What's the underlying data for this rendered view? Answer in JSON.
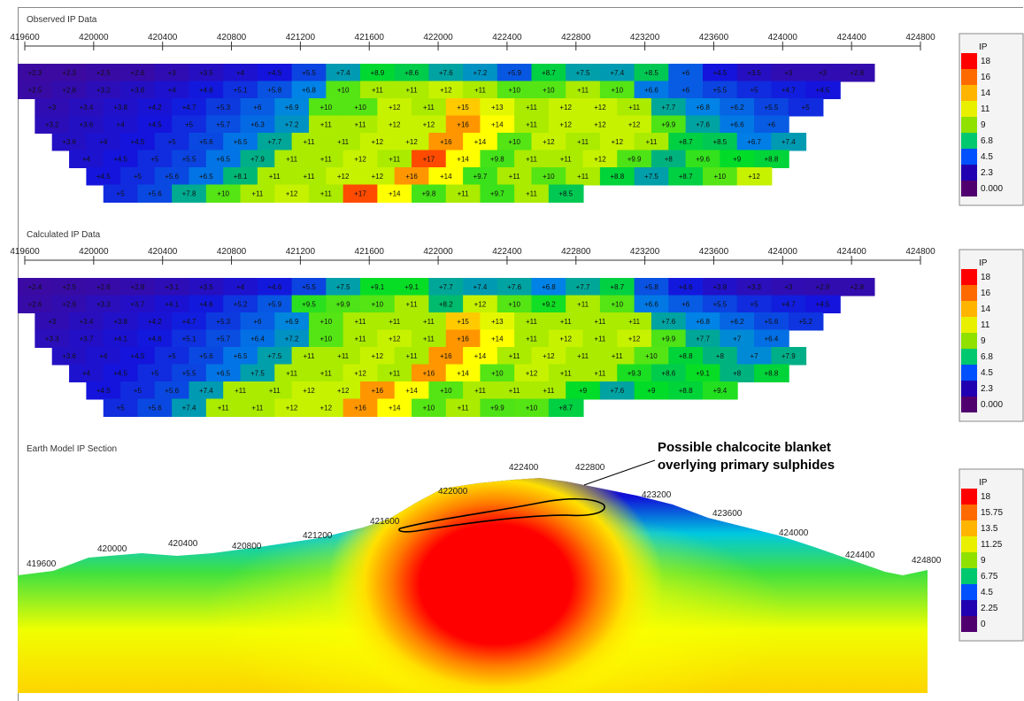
{
  "chart_data": [
    {
      "type": "heatmap",
      "title": "Observed IP Data",
      "x_ticks": [
        "419600",
        "420000",
        "420400",
        "420800",
        "421200",
        "421600",
        "422000",
        "422400",
        "422800",
        "423200",
        "423600",
        "424000",
        "424400",
        "424800"
      ],
      "legend": {
        "title": "IP",
        "labels": [
          "18",
          "16",
          "14",
          "11",
          "9",
          "6.8",
          "4.5",
          "2.3",
          "0.000"
        ]
      },
      "rows": [
        {
          "start": 0,
          "values": [
            2.3,
            2.3,
            2.5,
            2.6,
            3.0,
            3.5,
            4.0,
            4.5,
            5.5,
            7.4,
            8.9,
            8.6,
            7.6,
            7.2,
            5.9,
            8.7,
            7.5,
            7.4,
            8.5,
            6.0,
            4.5,
            3.5,
            3.0,
            3.0,
            2.8
          ]
        },
        {
          "start": 0,
          "values": [
            2.5,
            2.8,
            3.2,
            3.6,
            4.0,
            4.6,
            5.1,
            5.8,
            6.8,
            10,
            11,
            11,
            12,
            11,
            10,
            10,
            11,
            10,
            6.6,
            6.0,
            5.5,
            5.0,
            4.7,
            4.5
          ]
        },
        {
          "start": 1,
          "values": [
            3.0,
            3.4,
            3.8,
            4.2,
            4.7,
            5.3,
            6.0,
            6.9,
            10,
            10,
            12,
            11,
            15,
            13,
            11,
            12,
            12,
            11,
            7.7,
            6.8,
            6.2,
            5.5,
            5.0
          ]
        },
        {
          "start": 1,
          "values": [
            3.2,
            3.6,
            4.0,
            4.5,
            5.0,
            5.7,
            6.3,
            7.2,
            11,
            11,
            12,
            12,
            16,
            14,
            11,
            12,
            12,
            12,
            9.9,
            7.6,
            6.6,
            6.0
          ]
        },
        {
          "start": 2,
          "values": [
            3.6,
            4.0,
            4.5,
            5.0,
            5.6,
            6.5,
            7.7,
            11,
            11,
            12,
            12,
            16,
            14,
            10,
            12,
            11,
            12,
            11,
            8.7,
            8.5,
            6.7,
            7.4
          ]
        },
        {
          "start": 3,
          "values": [
            4.0,
            4.5,
            5.0,
            5.5,
            6.5,
            7.9,
            11,
            11,
            12,
            11,
            17,
            14,
            9.8,
            11,
            11,
            12,
            9.9,
            8.0,
            9.6,
            9.0,
            8.8
          ]
        },
        {
          "start": 4,
          "values": [
            4.5,
            5.0,
            5.6,
            6.5,
            8.1,
            11,
            11,
            12,
            12,
            16,
            14,
            9.7,
            11,
            10,
            11,
            8.8,
            7.5,
            8.7,
            10,
            12
          ]
        },
        {
          "start": 5,
          "values": [
            5.0,
            5.6,
            7.8,
            10,
            11,
            12,
            11,
            17,
            14,
            9.8,
            11,
            9.7,
            11,
            8.5
          ]
        }
      ]
    },
    {
      "type": "heatmap",
      "title": "Calculated IP Data",
      "x_ticks": [
        "419600",
        "420000",
        "420400",
        "420800",
        "421200",
        "421600",
        "422000",
        "422400",
        "422800",
        "423200",
        "423600",
        "424000",
        "424400",
        "424800"
      ],
      "legend": {
        "title": "IP",
        "labels": [
          "18",
          "16",
          "14",
          "11",
          "9",
          "6.8",
          "4.5",
          "2.3",
          "0.000"
        ]
      },
      "rows": [
        {
          "start": 0,
          "values": [
            2.4,
            2.5,
            2.6,
            2.8,
            3.1,
            3.5,
            4.0,
            4.6,
            5.5,
            7.5,
            9.1,
            9.1,
            7.7,
            7.4,
            7.6,
            6.8,
            7.7,
            8.7,
            5.8,
            4.6,
            3.8,
            3.3,
            3.0,
            2.9,
            2.8
          ]
        },
        {
          "start": 0,
          "values": [
            2.6,
            2.9,
            3.3,
            3.7,
            4.1,
            4.6,
            5.2,
            5.9,
            9.5,
            9.9,
            10,
            11,
            8.2,
            12,
            10,
            9.2,
            11,
            10,
            6.6,
            6.0,
            5.5,
            5.0,
            4.7,
            4.5
          ]
        },
        {
          "start": 1,
          "values": [
            3.0,
            3.4,
            3.8,
            4.2,
            4.7,
            5.3,
            6.0,
            6.9,
            10,
            11,
            11,
            11,
            15,
            13,
            11,
            11,
            11,
            11,
            7.6,
            6.8,
            6.2,
            5.6,
            5.2
          ]
        },
        {
          "start": 1,
          "values": [
            3.3,
            3.7,
            4.1,
            4.6,
            5.1,
            5.7,
            6.4,
            7.2,
            10,
            11,
            12,
            11,
            16,
            14,
            11,
            12,
            11,
            12,
            9.9,
            7.7,
            7.0,
            6.4
          ]
        },
        {
          "start": 2,
          "values": [
            3.6,
            4.0,
            4.5,
            5.0,
            5.6,
            6.5,
            7.5,
            11,
            11,
            12,
            11,
            16,
            14,
            11,
            12,
            11,
            11,
            10,
            8.8,
            8.0,
            7.0,
            7.9
          ]
        },
        {
          "start": 3,
          "values": [
            4.0,
            4.5,
            5.0,
            5.5,
            6.5,
            7.5,
            11,
            11,
            12,
            11,
            16,
            14,
            10,
            12,
            11,
            11,
            9.3,
            8.6,
            9.1,
            8.0,
            8.8
          ]
        },
        {
          "start": 4,
          "values": [
            4.5,
            5.0,
            5.6,
            7.4,
            11,
            11,
            12,
            12,
            16,
            14,
            10,
            11,
            11,
            11,
            9.0,
            7.6,
            9.0,
            8.8,
            9.4
          ]
        },
        {
          "start": 5,
          "values": [
            5.0,
            5.6,
            7.4,
            11,
            11,
            12,
            12,
            16,
            14,
            10,
            11,
            9.9,
            10,
            8.7
          ]
        }
      ]
    },
    {
      "type": "heatmap",
      "title": "Earth Model IP Section",
      "x_ticks": [
        "419600",
        "420000",
        "420400",
        "420800",
        "421200",
        "421600",
        "422000",
        "422400",
        "422800",
        "423200",
        "423600",
        "424000",
        "424400",
        "424800"
      ],
      "legend": {
        "title": "IP",
        "labels": [
          "18",
          "15.75",
          "13.5",
          "11.25",
          "9",
          "6.75",
          "4.5",
          "2.25",
          "0"
        ]
      },
      "annotation": {
        "line1": "Possible chalcocite blanket",
        "line2": "overlying primary sulphides"
      }
    }
  ]
}
